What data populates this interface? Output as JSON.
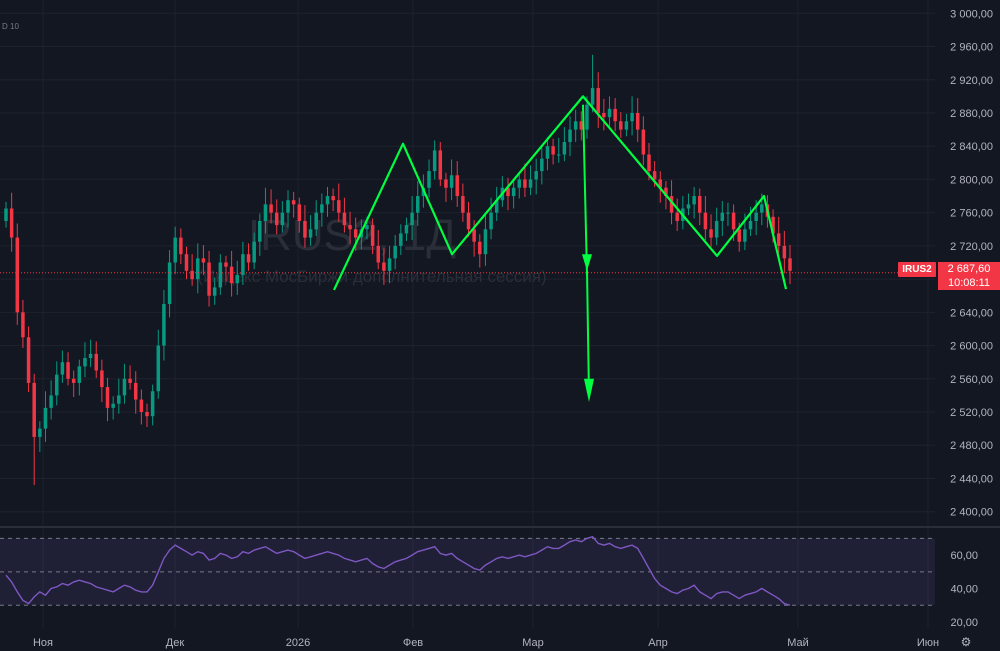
{
  "chart_data": [
    {
      "type": "candlestick",
      "symbol": "IRUS2",
      "watermark_symbol": "IRUS2, 1Д",
      "watermark_subtitle": "(Индекс МосБиржи дополнительная сессия)",
      "top_left_label": "D 10",
      "last_price": "2 687,60",
      "countdown": "10:08:11",
      "y_ticks": [
        "3 000,00",
        "2 960,00",
        "2 920,00",
        "2 880,00",
        "2 840,00",
        "2 800,00",
        "2 760,00",
        "2 720,00",
        "2 680,00",
        "2 640,00",
        "2 600,00",
        "2 560,00",
        "2 520,00",
        "2 480,00",
        "2 440,00",
        "2 400,00"
      ],
      "ylim": [
        2390,
        3010
      ],
      "x_ticks": [
        "Ноя",
        "Дек",
        "2026",
        "Фев",
        "Мар",
        "Апр",
        "Май",
        "Июн"
      ],
      "grid": true,
      "colors": {
        "up": "#089981",
        "down": "#f23645",
        "pattern": "#00ff41",
        "background": "#131722"
      },
      "close_series": [
        2765,
        2730,
        2640,
        2610,
        2555,
        2490,
        2500,
        2525,
        2540,
        2565,
        2580,
        2560,
        2555,
        2575,
        2585,
        2590,
        2570,
        2550,
        2525,
        2530,
        2540,
        2560,
        2555,
        2535,
        2520,
        2515,
        2545,
        2600,
        2650,
        2700,
        2730,
        2710,
        2690,
        2680,
        2705,
        2700,
        2660,
        2670,
        2700,
        2695,
        2675,
        2685,
        2710,
        2700,
        2725,
        2750,
        2770,
        2760,
        2745,
        2760,
        2775,
        2770,
        2750,
        2730,
        2740,
        2760,
        2770,
        2780,
        2775,
        2760,
        2745,
        2740,
        2730,
        2740,
        2745,
        2720,
        2700,
        2690,
        2705,
        2720,
        2735,
        2745,
        2760,
        2780,
        2790,
        2810,
        2835,
        2800,
        2790,
        2805,
        2780,
        2760,
        2740,
        2725,
        2710,
        2740,
        2760,
        2775,
        2790,
        2780,
        2790,
        2800,
        2790,
        2800,
        2810,
        2825,
        2840,
        2830,
        2830,
        2845,
        2860,
        2870,
        2860,
        2890,
        2910,
        2880,
        2875,
        2885,
        2870,
        2860,
        2870,
        2880,
        2860,
        2830,
        2810,
        2800,
        2790,
        2780,
        2760,
        2750,
        2765,
        2770,
        2780,
        2760,
        2740,
        2730,
        2750,
        2760,
        2760,
        2740,
        2725,
        2740,
        2750,
        2760,
        2770,
        2755,
        2735,
        2720,
        2705,
        2690
      ],
      "open_series": [
        2750,
        2765,
        2730,
        2640,
        2610,
        2555,
        2490,
        2500,
        2525,
        2540,
        2565,
        2580,
        2560,
        2555,
        2575,
        2585,
        2590,
        2570,
        2550,
        2525,
        2530,
        2540,
        2560,
        2555,
        2535,
        2520,
        2515,
        2545,
        2600,
        2650,
        2700,
        2730,
        2710,
        2690,
        2680,
        2705,
        2700,
        2660,
        2670,
        2700,
        2695,
        2675,
        2685,
        2710,
        2700,
        2725,
        2750,
        2770,
        2760,
        2745,
        2760,
        2775,
        2770,
        2750,
        2730,
        2740,
        2760,
        2770,
        2780,
        2775,
        2760,
        2745,
        2740,
        2730,
        2740,
        2745,
        2720,
        2700,
        2690,
        2705,
        2720,
        2735,
        2745,
        2760,
        2780,
        2790,
        2810,
        2835,
        2800,
        2790,
        2805,
        2780,
        2760,
        2740,
        2725,
        2710,
        2740,
        2760,
        2775,
        2790,
        2780,
        2790,
        2800,
        2790,
        2800,
        2810,
        2825,
        2840,
        2830,
        2830,
        2845,
        2860,
        2870,
        2860,
        2890,
        2910,
        2880,
        2875,
        2885,
        2870,
        2860,
        2870,
        2880,
        2860,
        2830,
        2810,
        2800,
        2790,
        2780,
        2760,
        2750,
        2765,
        2770,
        2780,
        2760,
        2740,
        2730,
        2750,
        2760,
        2760,
        2740,
        2725,
        2740,
        2750,
        2760,
        2770,
        2755,
        2735,
        2720,
        2705
      ],
      "wick_extremes": {
        "min": 2432,
        "max": 2950
      }
    },
    {
      "type": "line",
      "indicator": "RSI",
      "y_ticks": [
        "60,00",
        "40,00",
        "20,00"
      ],
      "ylim": [
        20,
        75
      ],
      "band": [
        30,
        70
      ],
      "midline": 50,
      "color": "#7e57c2",
      "values": [
        48,
        44,
        38,
        33,
        31,
        35,
        38,
        36,
        40,
        41,
        43,
        42,
        44,
        45,
        44,
        43,
        41,
        40,
        39,
        38,
        40,
        42,
        41,
        39,
        38,
        38,
        42,
        50,
        58,
        63,
        66,
        64,
        62,
        60,
        62,
        61,
        57,
        58,
        61,
        60,
        58,
        59,
        62,
        61,
        63,
        64,
        65,
        63,
        61,
        62,
        63,
        62,
        60,
        58,
        59,
        60,
        61,
        62,
        61,
        60,
        58,
        57,
        56,
        57,
        58,
        55,
        53,
        52,
        54,
        56,
        57,
        58,
        60,
        62,
        63,
        64,
        65,
        61,
        60,
        61,
        58,
        56,
        54,
        52,
        51,
        54,
        56,
        58,
        59,
        58,
        59,
        60,
        59,
        60,
        61,
        63,
        65,
        64,
        64,
        66,
        68,
        69,
        68,
        70,
        71,
        67,
        66,
        67,
        65,
        64,
        65,
        66,
        64,
        58,
        52,
        46,
        42,
        40,
        38,
        37,
        39,
        40,
        42,
        38,
        36,
        34,
        37,
        38,
        38,
        36,
        34,
        36,
        37,
        38,
        40,
        38,
        36,
        34,
        31,
        30
      ]
    }
  ]
}
